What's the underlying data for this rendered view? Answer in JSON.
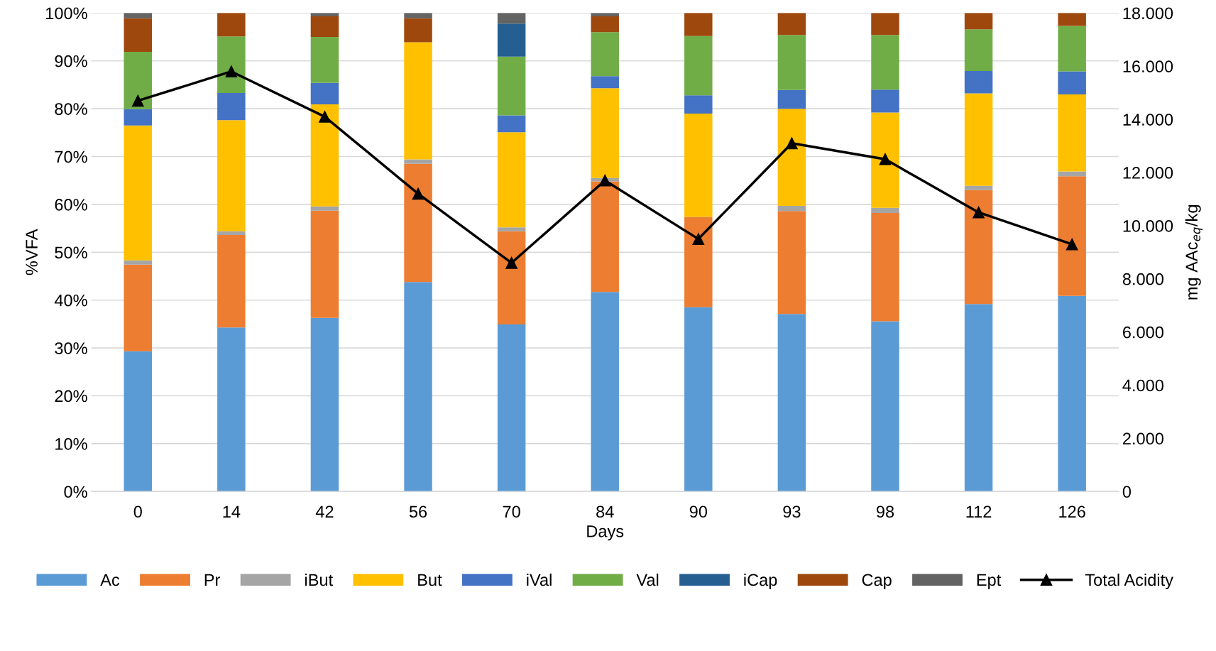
{
  "chart_data": {
    "type": "bar",
    "stacked": true,
    "xlabel": "Days",
    "ylabel": "%VFA",
    "y2label": "mg AAc$_{eq}$/kg",
    "categories": [
      "0",
      "14",
      "42",
      "56",
      "70",
      "84",
      "90",
      "93",
      "98",
      "112",
      "126"
    ],
    "series": [
      {
        "name": "Ac",
        "color": "#5b9bd5",
        "values": [
          29.3,
          34.3,
          36.3,
          43.8,
          34.9,
          41.7,
          38.5,
          37.1,
          35.6,
          39.2,
          40.9
        ]
      },
      {
        "name": "Pr",
        "color": "#ed7d31",
        "values": [
          18.1,
          19.3,
          22.4,
          24.7,
          19.5,
          23.1,
          18.9,
          21.5,
          22.6,
          23.8,
          25.0
        ]
      },
      {
        "name": "iBut",
        "color": "#a5a5a5",
        "values": [
          0.9,
          0.8,
          0.9,
          0.9,
          0.8,
          0.7,
          0,
          1.1,
          1.1,
          0.9,
          1.0
        ]
      },
      {
        "name": "But",
        "color": "#ffc000",
        "values": [
          28.2,
          23.2,
          21.3,
          24.5,
          19.9,
          18.8,
          21.6,
          20.3,
          19.9,
          19.3,
          16.1
        ]
      },
      {
        "name": "iVal",
        "color": "#4472c4",
        "values": [
          3.4,
          5.7,
          4.5,
          0,
          3.5,
          2.5,
          3.8,
          3.9,
          4.8,
          4.7,
          4.8
        ]
      },
      {
        "name": "Val",
        "color": "#70ad47",
        "values": [
          12.0,
          11.8,
          9.6,
          0,
          12.3,
          9.2,
          12.4,
          11.5,
          11.4,
          8.7,
          9.5
        ]
      },
      {
        "name": "iCap",
        "color": "#255e91",
        "values": [
          0,
          0,
          0,
          0,
          6.9,
          0,
          0,
          0,
          0,
          0,
          0
        ]
      },
      {
        "name": "Cap",
        "color": "#9e480e",
        "values": [
          7.0,
          4.9,
          4.3,
          5.0,
          0,
          3.3,
          4.8,
          4.6,
          4.6,
          3.4,
          2.7
        ]
      },
      {
        "name": "Ept",
        "color": "#636363",
        "values": [
          1.1,
          0,
          0.7,
          1.1,
          2.2,
          0.7,
          0,
          0,
          0,
          0,
          0
        ]
      },
      {
        "name": "Total Acidity",
        "type": "line",
        "axis": "y2",
        "color": "#000000",
        "marker": "triangle",
        "line_style": "solid",
        "values": [
          14700,
          15800,
          14100,
          11200,
          8600,
          11700,
          9500,
          13100,
          12500,
          10500,
          9300
        ]
      }
    ],
    "ylim": [
      0,
      100
    ],
    "yticks": [
      {
        "value": 0,
        "label": "0%"
      },
      {
        "value": 10,
        "label": "10%"
      },
      {
        "value": 20,
        "label": "20%"
      },
      {
        "value": 30,
        "label": "30%"
      },
      {
        "value": 40,
        "label": "40%"
      },
      {
        "value": 50,
        "label": "50%"
      },
      {
        "value": 60,
        "label": "60%"
      },
      {
        "value": 70,
        "label": "70%"
      },
      {
        "value": 80,
        "label": "80%"
      },
      {
        "value": 90,
        "label": "90%"
      },
      {
        "value": 100,
        "label": "100%"
      }
    ],
    "y2lim": [
      0,
      18000
    ],
    "y2ticks": [
      0,
      {
        "value": 2000,
        "label": "2.000"
      },
      {
        "value": 4000,
        "label": "4.000"
      },
      {
        "value": 6000,
        "label": "6.000"
      },
      {
        "value": 8000,
        "label": "8.000"
      },
      {
        "value": 10000,
        "label": "10.000"
      },
      {
        "value": 12000,
        "label": "12.000"
      },
      {
        "value": 14000,
        "label": "14.000"
      },
      {
        "value": 16000,
        "label": "16.000"
      },
      {
        "value": 18000,
        "label": "18.000"
      }
    ],
    "grid": "y",
    "legend": "bottom"
  }
}
